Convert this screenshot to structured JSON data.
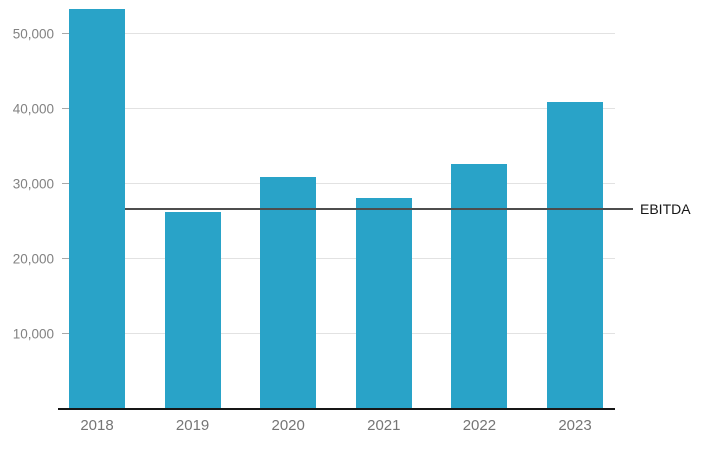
{
  "chart_data": {
    "type": "bar",
    "categories": [
      "2018",
      "2019",
      "2020",
      "2021",
      "2022",
      "2023"
    ],
    "values": [
      53200,
      26100,
      30800,
      28000,
      32500,
      40800
    ],
    "series_name": "",
    "xlabel": "",
    "ylabel": "",
    "y_axis": {
      "tick_values": [
        10000,
        20000,
        30000,
        40000,
        50000
      ],
      "tick_labels": [
        "10,000",
        "20,000",
        "30,000",
        "40,000",
        "50,000"
      ],
      "ylim": [
        0,
        54400
      ]
    },
    "reference_line": {
      "label": "EBITDA",
      "value": 26500
    },
    "grid": "horizontal",
    "legend_position": "none",
    "colors": {
      "bar": "#29a3c8",
      "gridline": "#e2e2e2",
      "grid_tick": "#a8a8a8",
      "axis_line": "#161616",
      "reference_line": "#4d4d4d",
      "reference_label_text": "#161616",
      "y_tick_text": "#828282",
      "x_tick_text": "#757575",
      "background": "#ffffff"
    }
  }
}
